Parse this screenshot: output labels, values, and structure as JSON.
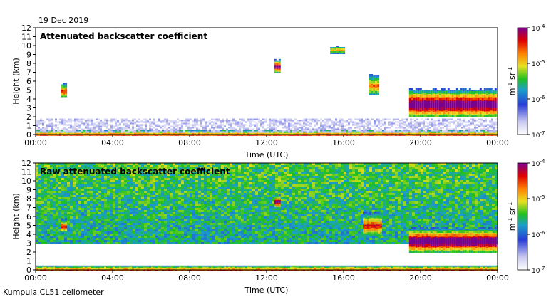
{
  "date_label": "19 Dec 2019",
  "footer_label": "Kumpula CL51 ceilometer",
  "chart_data": [
    {
      "type": "heatmap",
      "title": "Attenuated backscatter coefficient",
      "xlabel": "Time (UTC)",
      "ylabel": "Height (km)",
      "xlim": [
        0,
        24
      ],
      "ylim": [
        0,
        12
      ],
      "x_ticks": [
        "00:00",
        "04:00",
        "08:00",
        "12:00",
        "16:00",
        "20:00",
        "00:00"
      ],
      "y_ticks": [
        "0",
        "1",
        "2",
        "3",
        "4",
        "5",
        "6",
        "7",
        "8",
        "9",
        "10",
        "11",
        "12"
      ],
      "colorbar": {
        "scale": "log",
        "unit": "m-1 sr-1",
        "ticks": [
          "10-7",
          "10-6",
          "10-5",
          "10-4"
        ],
        "range": [
          1e-07,
          0.0001
        ]
      },
      "features": [
        {
          "kind": "surface-layer",
          "t_start": 0,
          "t_end": 24,
          "h_base": 0.0,
          "h_top": 0.5,
          "level": 0.8
        },
        {
          "kind": "aerosol-haze",
          "t_start": 0,
          "t_end": 24,
          "h_base": 0.3,
          "h_top": 1.8,
          "level": 0.12
        },
        {
          "kind": "cloud",
          "t_start": 1.3,
          "t_end": 1.6,
          "h_base": 4.2,
          "h_top": 5.8,
          "level": 0.6
        },
        {
          "kind": "cloud",
          "t_start": 12.4,
          "t_end": 12.7,
          "h_base": 7.0,
          "h_top": 8.5,
          "level": 0.75
        },
        {
          "kind": "cloud",
          "t_start": 15.3,
          "t_end": 16.0,
          "h_base": 9.2,
          "h_top": 10.0,
          "level": 0.45
        },
        {
          "kind": "cloud",
          "t_start": 17.3,
          "t_end": 17.8,
          "h_base": 4.5,
          "h_top": 6.8,
          "level": 0.5
        },
        {
          "kind": "cloud",
          "t_start": 19.4,
          "t_end": 23.9,
          "h_base": 2.0,
          "h_top": 5.2,
          "level": 0.85
        }
      ]
    },
    {
      "type": "heatmap",
      "title": "Raw attenuated backscatter coefficient",
      "xlabel": "Time (UTC)",
      "ylabel": "Height (km)",
      "xlim": [
        0,
        24
      ],
      "ylim": [
        0,
        12
      ],
      "x_ticks": [
        "00:00",
        "04:00",
        "08:00",
        "12:00",
        "16:00",
        "20:00",
        "00:00"
      ],
      "y_ticks": [
        "0",
        "1",
        "2",
        "3",
        "4",
        "5",
        "6",
        "7",
        "8",
        "9",
        "10",
        "11",
        "12"
      ],
      "colorbar": {
        "scale": "log",
        "unit": "m-1 sr-1",
        "ticks": [
          "10-7",
          "10-6",
          "10-5",
          "10-4"
        ],
        "range": [
          1e-07,
          0.0001
        ]
      },
      "features": [
        {
          "kind": "surface-layer",
          "t_start": 0,
          "t_end": 24,
          "h_base": 0.0,
          "h_top": 0.5,
          "level": 0.8
        },
        {
          "kind": "noise-background",
          "t_start": 0,
          "t_end": 24,
          "h_base": 3.0,
          "h_top": 12.0,
          "level": 0.45
        },
        {
          "kind": "cloud",
          "t_start": 1.3,
          "t_end": 1.6,
          "h_base": 4.2,
          "h_top": 5.8,
          "level": 0.6
        },
        {
          "kind": "cloud",
          "t_start": 12.4,
          "t_end": 12.7,
          "h_base": 7.0,
          "h_top": 8.5,
          "level": 0.75
        },
        {
          "kind": "cloud",
          "t_start": 17.0,
          "t_end": 18.0,
          "h_base": 3.8,
          "h_top": 6.5,
          "level": 0.6
        },
        {
          "kind": "cloud",
          "t_start": 19.4,
          "t_end": 23.9,
          "h_base": 2.0,
          "h_top": 4.8,
          "level": 0.85
        }
      ]
    }
  ]
}
